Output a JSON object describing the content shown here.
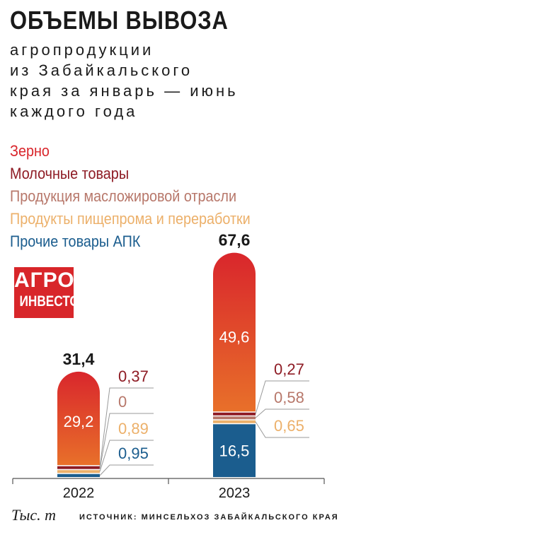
{
  "title": "ОБЪЕМЫ ВЫВОЗА",
  "subtitle_lines": [
    "агропродукции",
    "из Забайкальского",
    "края за январь — июнь",
    "каждого года"
  ],
  "logo": {
    "line1": "АГРО",
    "line2": "ИНВЕСТОР"
  },
  "unit_label": "Тыс. т",
  "source": "ИСТОЧНИК: МИНСЕЛЬХОЗ ЗАБАЙКАЛЬСКОГО КРАЯ",
  "colors": {
    "grain_top": "#d9262c",
    "grain_bottom": "#e8702a",
    "dairy": "#8e1b24",
    "oilfat": "#b7776a",
    "food": "#ecb06a",
    "other": "#1b5d8e",
    "leader": "#999999"
  },
  "chart_data": {
    "type": "bar",
    "stacked": true,
    "categories": [
      "2022",
      "2023"
    ],
    "totals": [
      "31,4",
      "67,6"
    ],
    "series": [
      {
        "key": "grain",
        "name": "Зерно",
        "color": "#d9262c",
        "values": [
          29.2,
          49.6
        ],
        "labels": [
          "29,2",
          "49,6"
        ]
      },
      {
        "key": "dairy",
        "name": "Молочные товары",
        "color": "#8e1b24",
        "values": [
          0.37,
          0.27
        ],
        "labels": [
          "0,37",
          "0,27"
        ]
      },
      {
        "key": "oilfat",
        "name": "Продукция масложировой отрасли",
        "color": "#b7776a",
        "values": [
          0,
          0.58
        ],
        "labels": [
          "0",
          "0,58"
        ]
      },
      {
        "key": "food",
        "name": "Продукты пищепрома и переработки",
        "color": "#ecb06a",
        "values": [
          0.89,
          0.65
        ],
        "labels": [
          "0,89",
          "0,65"
        ]
      },
      {
        "key": "other",
        "name": "Прочие товары АПК",
        "color": "#1b5d8e",
        "values": [
          0.95,
          16.5
        ],
        "labels": [
          "0,95",
          "16,5"
        ]
      }
    ],
    "xlabel": "",
    "ylabel": "Тыс. т",
    "legend": "top-left"
  }
}
